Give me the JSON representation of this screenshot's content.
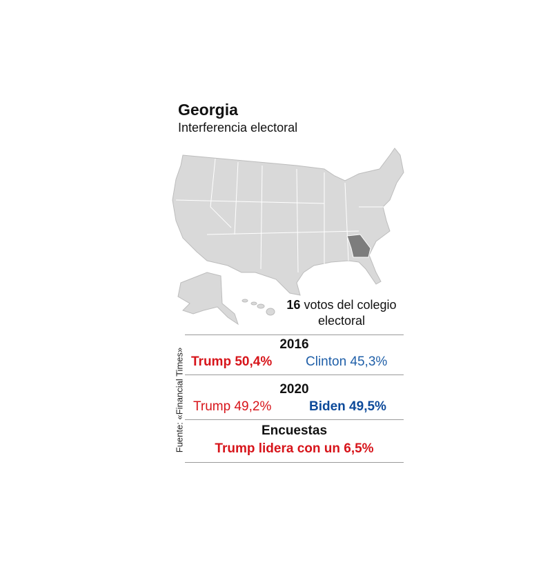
{
  "header": {
    "title": "Georgia",
    "subtitle": "Interferencia electoral"
  },
  "electoral_votes": {
    "number": "16",
    "label": "votos del colegio electoral"
  },
  "results": [
    {
      "heading": "2016",
      "left": "Trump 50,4%",
      "right": "Clinton 45,3%"
    },
    {
      "heading": "2020",
      "left": "Trump 49,2%",
      "right": "Biden 49,5%"
    },
    {
      "heading": "Encuestas",
      "center": "Trump lidera con un 6,5%"
    }
  ],
  "source": "Fuente: «Financial Times»"
}
